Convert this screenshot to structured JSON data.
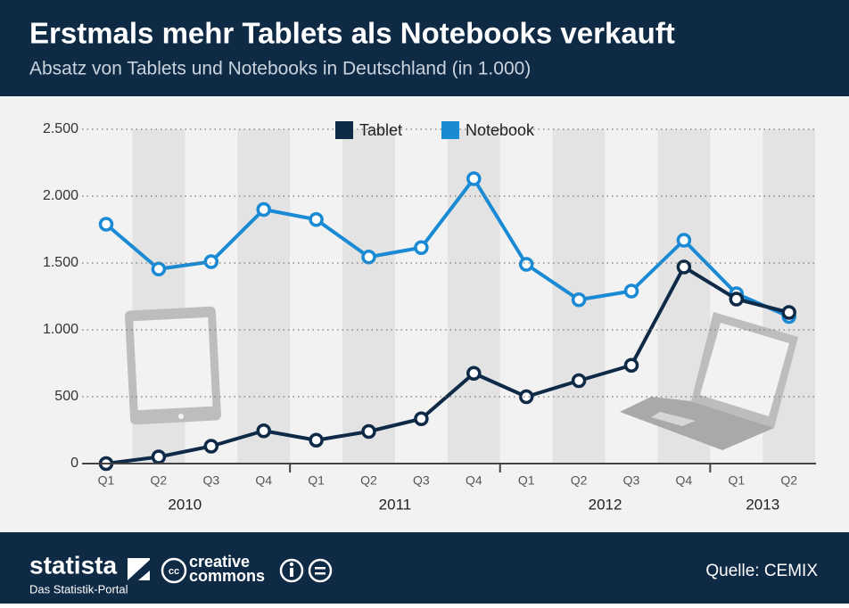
{
  "chart_data": {
    "type": "line",
    "title": "Erstmals mehr Tablets als Notebooks verkauft",
    "subtitle": "Absatz von Tablets und Notebooks in Deutschland (in 1.000)",
    "categories": [
      "Q1",
      "Q2",
      "Q3",
      "Q4",
      "Q1",
      "Q2",
      "Q3",
      "Q4",
      "Q1",
      "Q2",
      "Q3",
      "Q4",
      "Q1",
      "Q2"
    ],
    "groups": [
      {
        "label": "2010",
        "size": 4
      },
      {
        "label": "2011",
        "size": 4
      },
      {
        "label": "2012",
        "size": 4
      },
      {
        "label": "2013",
        "size": 2
      }
    ],
    "series": [
      {
        "name": "Tablet",
        "color": "#0e2a47",
        "values": [
          0,
          50,
          130,
          245,
          175,
          240,
          335,
          675,
          500,
          620,
          735,
          1470,
          1230,
          1130
        ]
      },
      {
        "name": "Notebook",
        "color": "#1a8ad4",
        "values": [
          1790,
          1455,
          1510,
          1900,
          1825,
          1545,
          1615,
          2130,
          1490,
          1225,
          1290,
          1670,
          1270,
          1100
        ]
      }
    ],
    "ylim": [
      0,
      2500
    ],
    "yticks": [
      0,
      500,
      {
        "value": 1000,
        "label": "1.000"
      },
      {
        "value": 1500,
        "label": "1.500"
      },
      {
        "value": 2000,
        "label": "2.000"
      },
      {
        "value": 2500,
        "label": "2.500"
      }
    ],
    "grid": true,
    "legend": "top"
  },
  "footer": {
    "brand": "statista",
    "tagline": "Das Statistik-Portal",
    "license": [
      "creative",
      "commons"
    ],
    "source": "Quelle: CEMIX"
  }
}
